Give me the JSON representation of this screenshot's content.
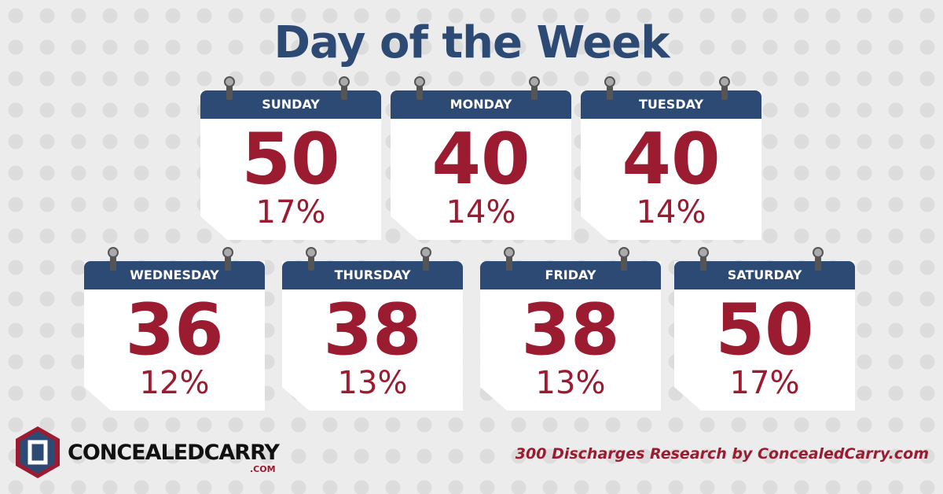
{
  "title": "Day of the Week",
  "cards": [
    {
      "day": "SUNDAY",
      "count": 50,
      "percent": "17%"
    },
    {
      "day": "MONDAY",
      "count": 40,
      "percent": "14%"
    },
    {
      "day": "TUESDAY",
      "count": 40,
      "percent": "14%"
    },
    {
      "day": "WEDNESDAY",
      "count": 36,
      "percent": "12%"
    },
    {
      "day": "THURSDAY",
      "count": 38,
      "percent": "13%"
    },
    {
      "day": "FRIDAY",
      "count": 38,
      "percent": "13%"
    },
    {
      "day": "SATURDAY",
      "count": 50,
      "percent": "17%"
    }
  ],
  "logo": {
    "name": "CONCEALEDCARRY",
    "suffix": ".COM"
  },
  "footer": "300 Discharges Research by ConcealedCarry.com"
}
